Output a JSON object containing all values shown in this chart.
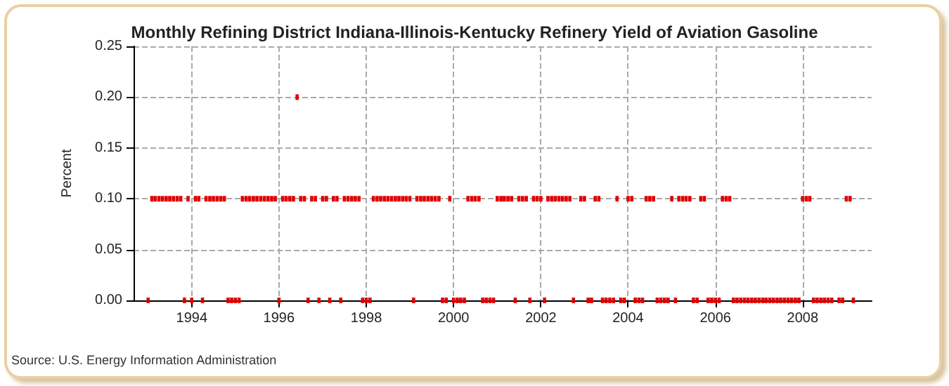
{
  "chart_data": {
    "type": "scatter",
    "title": "Monthly Refining District Indiana-Illinois-Kentucky Refinery Yield of Aviation Gasoline",
    "ylabel": "Percent",
    "annotations": [
      "Source: U.S. Energy Information Administration"
    ],
    "x": [
      "1993-01",
      "1993-02",
      "1993-03",
      "1993-04",
      "1993-05",
      "1993-06",
      "1993-07",
      "1993-08",
      "1993-09",
      "1993-10",
      "1993-11",
      "1993-12",
      "1994-01",
      "1994-02",
      "1994-03",
      "1994-04",
      "1994-05",
      "1994-06",
      "1994-07",
      "1994-08",
      "1994-09",
      "1994-10",
      "1994-11",
      "1994-12",
      "1995-01",
      "1995-02",
      "1995-03",
      "1995-04",
      "1995-05",
      "1995-06",
      "1995-07",
      "1995-08",
      "1995-09",
      "1995-10",
      "1995-11",
      "1995-12",
      "1996-01",
      "1996-02",
      "1996-03",
      "1996-04",
      "1996-05",
      "1996-06",
      "1996-07",
      "1996-08",
      "1996-09",
      "1996-10",
      "1996-11",
      "1996-12",
      "1997-01",
      "1997-02",
      "1997-03",
      "1997-04",
      "1997-05",
      "1997-06",
      "1997-07",
      "1997-08",
      "1997-09",
      "1997-10",
      "1997-11",
      "1997-12",
      "1998-01",
      "1998-02",
      "1998-03",
      "1998-04",
      "1998-05",
      "1998-06",
      "1998-07",
      "1998-08",
      "1998-09",
      "1998-10",
      "1998-11",
      "1998-12",
      "1999-01",
      "1999-02",
      "1999-03",
      "1999-04",
      "1999-05",
      "1999-06",
      "1999-07",
      "1999-08",
      "1999-09",
      "1999-10",
      "1999-11",
      "1999-12",
      "2000-01",
      "2000-02",
      "2000-03",
      "2000-04",
      "2000-05",
      "2000-06",
      "2000-07",
      "2000-08",
      "2000-09",
      "2000-10",
      "2000-11",
      "2000-12",
      "2001-01",
      "2001-02",
      "2001-03",
      "2001-04",
      "2001-05",
      "2001-06",
      "2001-07",
      "2001-08",
      "2001-09",
      "2001-10",
      "2001-11",
      "2001-12",
      "2002-01",
      "2002-02",
      "2002-03",
      "2002-04",
      "2002-05",
      "2002-06",
      "2002-07",
      "2002-08",
      "2002-09",
      "2002-10",
      "2002-11",
      "2002-12",
      "2003-01",
      "2003-02",
      "2003-03",
      "2003-04",
      "2003-05",
      "2003-06",
      "2003-07",
      "2003-08",
      "2003-09",
      "2003-10",
      "2003-11",
      "2003-12",
      "2004-01",
      "2004-02",
      "2004-03",
      "2004-04",
      "2004-05",
      "2004-06",
      "2004-07",
      "2004-08",
      "2004-09",
      "2004-10",
      "2004-11",
      "2004-12",
      "2005-01",
      "2005-02",
      "2005-03",
      "2005-04",
      "2005-05",
      "2005-06",
      "2005-07",
      "2005-08",
      "2005-09",
      "2005-10",
      "2005-11",
      "2005-12",
      "2006-01",
      "2006-02",
      "2006-03",
      "2006-04",
      "2006-05",
      "2006-06",
      "2006-07",
      "2006-08",
      "2006-09",
      "2006-10",
      "2006-11",
      "2006-12",
      "2007-01",
      "2007-02",
      "2007-03",
      "2007-04",
      "2007-05",
      "2007-06",
      "2007-07",
      "2007-08",
      "2007-09",
      "2007-10",
      "2007-11",
      "2007-12",
      "2008-01",
      "2008-02",
      "2008-03",
      "2008-04",
      "2008-05",
      "2008-06",
      "2008-07",
      "2008-08",
      "2008-09",
      "2008-10",
      "2008-11",
      "2008-12",
      "2009-01",
      "2009-02",
      "2009-03"
    ],
    "series": [
      {
        "color": "#e00000",
        "values": [
          0,
          0.1,
          0.1,
          0.1,
          0.1,
          0.1,
          0.1,
          0.1,
          0.1,
          0.1,
          0,
          0.1,
          0,
          0.1,
          0.1,
          0,
          0.1,
          0.1,
          0.1,
          0.1,
          0.1,
          0.1,
          0,
          0,
          0,
          0,
          0.1,
          0.1,
          0.1,
          0.1,
          0.1,
          0.1,
          0.1,
          0.1,
          0.1,
          0.1,
          0,
          0.1,
          0.1,
          0.1,
          0.1,
          0.2,
          0.1,
          0.1,
          0,
          0.1,
          0.1,
          0,
          0.1,
          0.1,
          0,
          0.1,
          0.1,
          0,
          0.1,
          0.1,
          0.1,
          0.1,
          0.1,
          0,
          0,
          0,
          0.1,
          0.1,
          0.1,
          0.1,
          0.1,
          0.1,
          0.1,
          0.1,
          0.1,
          0.1,
          0.1,
          0,
          0.1,
          0.1,
          0.1,
          0.1,
          0.1,
          0.1,
          0.1,
          0,
          0,
          0.1,
          0,
          0,
          0,
          0,
          0.1,
          0.1,
          0.1,
          0.1,
          0,
          0,
          0,
          0,
          0.1,
          0.1,
          0.1,
          0.1,
          0.1,
          0,
          0.1,
          0.1,
          0.1,
          0,
          0.1,
          0.1,
          0.1,
          0,
          0.1,
          0.1,
          0.1,
          0.1,
          0.1,
          0.1,
          0.1,
          0,
          null,
          0.1,
          0.1,
          0,
          0,
          0.1,
          0.1,
          0,
          0,
          0,
          0,
          0.1,
          0,
          0,
          0.1,
          0.1,
          0,
          0,
          0,
          0.1,
          0.1,
          0.1,
          0,
          0,
          0,
          0,
          0.1,
          0,
          0.1,
          0.1,
          0.1,
          0.1,
          0,
          0,
          0.1,
          0.1,
          0,
          0,
          0,
          0,
          0.1,
          0.1,
          0.1,
          0,
          0,
          0,
          0,
          0,
          0,
          0,
          0,
          0,
          0,
          0,
          0,
          0,
          0,
          0,
          0,
          0,
          0,
          0,
          0.1,
          0.1,
          0.1,
          0,
          0,
          0,
          0,
          0,
          0,
          null,
          0,
          0,
          0.1,
          0.1,
          0
        ]
      }
    ],
    "xlim": [
      "1992-09",
      "2009-08"
    ],
    "xticks": [
      "1994",
      "1996",
      "1998",
      "2000",
      "2002",
      "2004",
      "2006",
      "2008"
    ],
    "ylim": [
      0,
      0.25
    ],
    "yticks": [
      {
        "value": 0,
        "label": "0.00"
      },
      {
        "value": 0.05,
        "label": "0.05"
      },
      {
        "value": 0.1,
        "label": "0.10"
      },
      {
        "value": 0.15,
        "label": "0.15"
      },
      {
        "value": 0.2,
        "label": "0.20"
      },
      {
        "value": 0.25,
        "label": "0.25"
      }
    ],
    "grid": true,
    "marker": "square"
  }
}
